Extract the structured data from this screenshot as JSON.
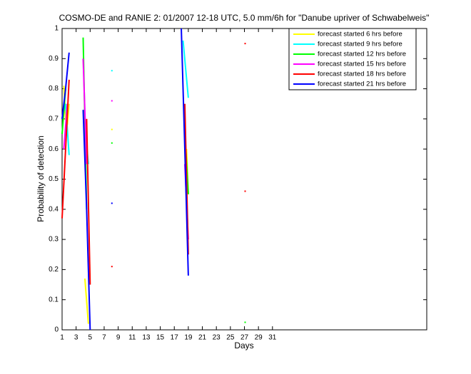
{
  "chart_data": {
    "type": "line",
    "title": "COSMO-DE and RANIE 2: 01/2007 12-18 UTC, 5.0 mm/6h for \"Danube upriver of Schwabelweis\"",
    "xlabel": "Days",
    "ylabel": "Probability of detection",
    "xlim": [
      1,
      53
    ],
    "ylim": [
      0,
      1
    ],
    "xticks": [
      1,
      3,
      5,
      7,
      9,
      11,
      13,
      15,
      17,
      19,
      21,
      23,
      25,
      27,
      29,
      31
    ],
    "yticks": [
      0,
      0.1,
      0.2,
      0.3,
      0.4,
      0.5,
      0.6,
      0.7,
      0.8,
      0.9,
      1
    ],
    "legend_position": "upper right",
    "series": [
      {
        "name": "forecast started 6 hrs before",
        "color": "#ffff00",
        "x": [
          1.25,
          1.5,
          1.75,
          2,
          null,
          4.25,
          4.75,
          null,
          8,
          null,
          18.75,
          19
        ],
        "values": [
          0.81,
          0.7,
          0.68,
          0.75,
          null,
          0.17,
          0.02,
          null,
          0.665,
          null,
          0.6,
          0.45
        ]
      },
      {
        "name": "forecast started 9 hrs before",
        "color": "#00ffff",
        "x": [
          1,
          1.5,
          2,
          null,
          4.25,
          4.75,
          null,
          8,
          null,
          18.25,
          19
        ],
        "values": [
          0.7,
          0.75,
          0.58,
          null,
          0.68,
          0.55,
          null,
          0.86,
          null,
          0.96,
          0.77
        ]
      },
      {
        "name": "forecast started 12 hrs before",
        "color": "#00ff00",
        "x": [
          1,
          1.5,
          null,
          4,
          4.5,
          null,
          8,
          null,
          18.5,
          19,
          null,
          27
        ],
        "values": [
          0.65,
          0.8,
          null,
          0.97,
          0.4,
          null,
          0.62,
          null,
          0.66,
          0.45,
          null,
          0.025
        ]
      },
      {
        "name": "forecast started 15 hrs before",
        "color": "#ff00ff",
        "x": [
          1.25,
          1.75,
          null,
          4,
          4.5,
          null,
          8,
          null,
          18.5,
          19
        ],
        "values": [
          0.6,
          0.75,
          null,
          0.9,
          0.55,
          null,
          0.76,
          null,
          0.55,
          0.3
        ]
      },
      {
        "name": "forecast started 18 hrs before",
        "color": "#ff0000",
        "x": [
          1,
          1.5,
          2,
          null,
          4.5,
          5,
          null,
          8,
          null,
          18.5,
          19,
          null,
          27,
          null,
          27
        ],
        "values": [
          0.37,
          0.6,
          0.83,
          null,
          0.7,
          0.15,
          null,
          0.21,
          null,
          0.75,
          0.25,
          null,
          0.95,
          null,
          0.46
        ]
      },
      {
        "name": "forecast started 21 hrs before",
        "color": "#0000ff",
        "x": [
          1,
          1.5,
          2,
          null,
          4,
          4.5,
          5,
          null,
          8,
          null,
          18,
          18.5,
          19
        ],
        "values": [
          0.7,
          0.8,
          0.92,
          null,
          0.73,
          0.4,
          0,
          null,
          0.42,
          null,
          1,
          0.6,
          0.18
        ]
      }
    ]
  }
}
